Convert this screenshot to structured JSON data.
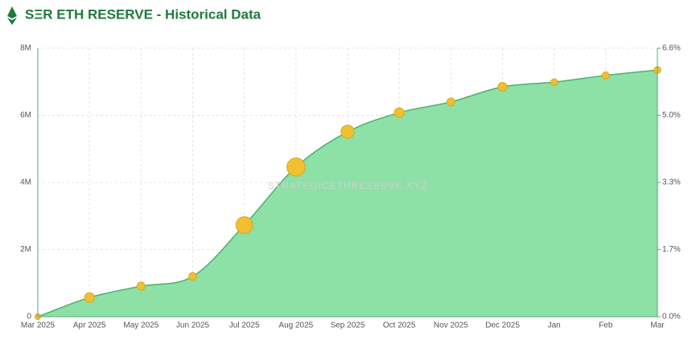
{
  "chart_data": {
    "type": "area",
    "title": "SΞR ETH RESERVE - Historical Data",
    "watermark": "STRATEGICETHRESERVE.XYZ",
    "categories": [
      "Mar 2025",
      "Apr 2025",
      "May 2025",
      "Jun 2025",
      "Jul 2025",
      "Aug 2025",
      "Sep 2025",
      "Oct 2025",
      "Nov 2025",
      "Dec 2025",
      "Jan",
      "Feb",
      "Mar"
    ],
    "series": [
      {
        "color": "#f0c030",
        "fill": "#8de0a6",
        "line_color": "#4caf6d",
        "values": [
          0,
          570000,
          910000,
          1200000,
          2730000,
          4460000,
          5510000,
          6080000,
          6400000,
          6850000,
          6990000,
          7190000,
          7350000
        ]
      }
    ],
    "ylim": [
      0,
      8000000
    ],
    "yticks": [
      0,
      {
        "value": 2000000,
        "label": "2M"
      },
      {
        "value": 4000000,
        "label": "4M"
      },
      {
        "value": 6000000,
        "label": "6M"
      },
      {
        "value": 8000000,
        "label": "8M"
      }
    ],
    "y2lim": [
      0,
      6.6
    ],
    "y2ticks": [
      {
        "value": 0,
        "label": "0.0%"
      },
      {
        "value": 1.65,
        "label": "1.7%"
      },
      {
        "value": 3.3,
        "label": "3.3%"
      },
      {
        "value": 4.95,
        "label": "5.0%"
      },
      {
        "value": 6.6,
        "label": "6.6%"
      }
    ],
    "grid": true
  }
}
